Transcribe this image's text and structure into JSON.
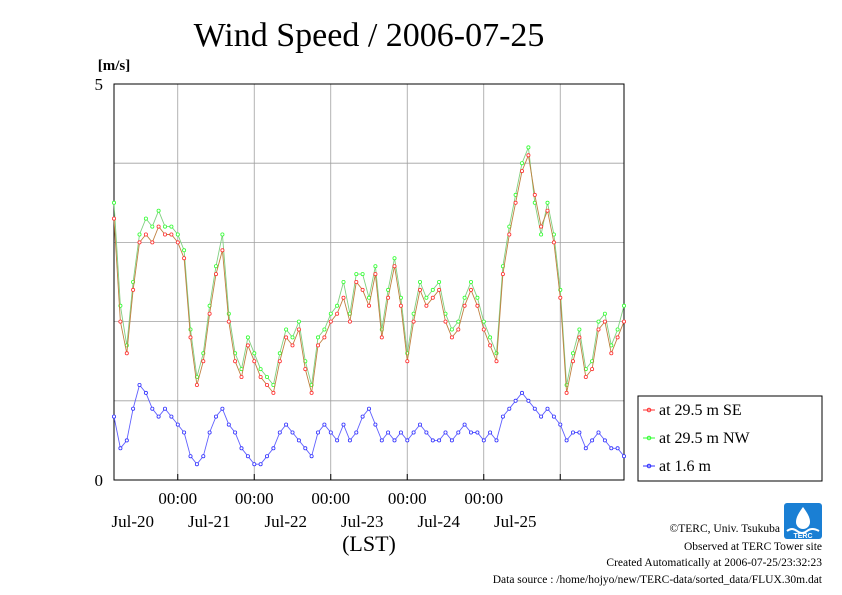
{
  "chart_data": {
    "type": "line",
    "title": "Wind Speed / 2006-07-25",
    "ylabel": "[m/s]",
    "xlabel": "(LST)",
    "ylim": [
      0,
      5
    ],
    "y_tick_labels": [
      "0",
      "5"
    ],
    "x_range_hours_from_jul20_0000": [
      -20,
      140
    ],
    "x_ticks": [
      {
        "time": "00:00",
        "day": "Jul-20",
        "hours": 0
      },
      {
        "time": "00:00",
        "day": "Jul-21",
        "hours": 24
      },
      {
        "time": "00:00",
        "day": "Jul-22",
        "hours": 48
      },
      {
        "time": "00:00",
        "day": "Jul-23",
        "hours": 72
      },
      {
        "time": "00:00",
        "day": "Jul-24",
        "hours": 96
      },
      {
        "time": "",
        "day": "Jul-25",
        "hours": 120
      }
    ],
    "series": [
      {
        "name": "at 29.5 m SE",
        "color": "#ff3030",
        "x": [
          -20,
          -18,
          -16,
          -14,
          -12,
          -10,
          -8,
          -6,
          -4,
          -2,
          0,
          2,
          4,
          6,
          8,
          10,
          12,
          14,
          16,
          18,
          20,
          22,
          24,
          26,
          28,
          30,
          32,
          34,
          36,
          38,
          40,
          42,
          44,
          46,
          48,
          50,
          52,
          54,
          56,
          58,
          60,
          62,
          64,
          66,
          68,
          70,
          72,
          74,
          76,
          78,
          80,
          82,
          84,
          86,
          88,
          90,
          92,
          94,
          96,
          98,
          100,
          102,
          104,
          106,
          108,
          110,
          112,
          114,
          116,
          118,
          120,
          122,
          124,
          126,
          128,
          130,
          132,
          134,
          136,
          138,
          140
        ],
        "values": [
          3.3,
          2.0,
          1.6,
          2.4,
          3.0,
          3.1,
          3.0,
          3.2,
          3.1,
          3.1,
          3.0,
          2.8,
          1.8,
          1.2,
          1.5,
          2.1,
          2.6,
          2.9,
          2.0,
          1.5,
          1.3,
          1.7,
          1.5,
          1.3,
          1.2,
          1.1,
          1.5,
          1.8,
          1.7,
          1.9,
          1.4,
          1.1,
          1.7,
          1.8,
          2.0,
          2.1,
          2.3,
          2.0,
          2.5,
          2.4,
          2.2,
          2.6,
          1.8,
          2.3,
          2.7,
          2.2,
          1.5,
          2.0,
          2.4,
          2.2,
          2.3,
          2.4,
          2.0,
          1.8,
          1.9,
          2.2,
          2.4,
          2.2,
          1.9,
          1.7,
          1.5,
          2.6,
          3.1,
          3.5,
          3.9,
          4.1,
          3.6,
          3.2,
          3.4,
          3.0,
          2.3,
          1.1,
          1.5,
          1.8,
          1.3,
          1.4,
          1.9,
          2.0,
          1.6,
          1.8,
          2.0
        ]
      },
      {
        "name": "at 29.5 m NW",
        "color": "#30ff30",
        "x": [
          -20,
          -18,
          -16,
          -14,
          -12,
          -10,
          -8,
          -6,
          -4,
          -2,
          0,
          2,
          4,
          6,
          8,
          10,
          12,
          14,
          16,
          18,
          20,
          22,
          24,
          26,
          28,
          30,
          32,
          34,
          36,
          38,
          40,
          42,
          44,
          46,
          48,
          50,
          52,
          54,
          56,
          58,
          60,
          62,
          64,
          66,
          68,
          70,
          72,
          74,
          76,
          78,
          80,
          82,
          84,
          86,
          88,
          90,
          92,
          94,
          96,
          98,
          100,
          102,
          104,
          106,
          108,
          110,
          112,
          114,
          116,
          118,
          120,
          122,
          124,
          126,
          128,
          130,
          132,
          134,
          136,
          138,
          140
        ],
        "values": [
          3.5,
          2.2,
          1.7,
          2.5,
          3.1,
          3.3,
          3.2,
          3.4,
          3.2,
          3.2,
          3.1,
          2.9,
          1.9,
          1.3,
          1.6,
          2.2,
          2.7,
          3.1,
          2.1,
          1.6,
          1.4,
          1.8,
          1.6,
          1.4,
          1.3,
          1.2,
          1.6,
          1.9,
          1.8,
          2.0,
          1.5,
          1.2,
          1.8,
          1.9,
          2.1,
          2.2,
          2.5,
          2.1,
          2.6,
          2.6,
          2.3,
          2.7,
          1.9,
          2.4,
          2.8,
          2.3,
          1.6,
          2.1,
          2.5,
          2.3,
          2.4,
          2.5,
          2.1,
          1.9,
          2.0,
          2.3,
          2.5,
          2.3,
          2.0,
          1.8,
          1.6,
          2.7,
          3.2,
          3.6,
          4.0,
          4.2,
          3.5,
          3.1,
          3.5,
          3.1,
          2.4,
          1.2,
          1.6,
          1.9,
          1.4,
          1.5,
          2.0,
          2.1,
          1.7,
          1.9,
          2.2
        ]
      },
      {
        "name": "at 1.6 m",
        "color": "#3030ff",
        "x": [
          -20,
          -18,
          -16,
          -14,
          -12,
          -10,
          -8,
          -6,
          -4,
          -2,
          0,
          2,
          4,
          6,
          8,
          10,
          12,
          14,
          16,
          18,
          20,
          22,
          24,
          26,
          28,
          30,
          32,
          34,
          36,
          38,
          40,
          42,
          44,
          46,
          48,
          50,
          52,
          54,
          56,
          58,
          60,
          62,
          64,
          66,
          68,
          70,
          72,
          74,
          76,
          78,
          80,
          82,
          84,
          86,
          88,
          90,
          92,
          94,
          96,
          98,
          100,
          102,
          104,
          106,
          108,
          110,
          112,
          114,
          116,
          118,
          120,
          122,
          124,
          126,
          128,
          130,
          132,
          134,
          136,
          138,
          140
        ],
        "values": [
          0.8,
          0.4,
          0.5,
          0.9,
          1.2,
          1.1,
          0.9,
          0.8,
          0.9,
          0.8,
          0.7,
          0.6,
          0.3,
          0.2,
          0.3,
          0.6,
          0.8,
          0.9,
          0.7,
          0.6,
          0.4,
          0.3,
          0.2,
          0.2,
          0.3,
          0.4,
          0.6,
          0.7,
          0.6,
          0.5,
          0.4,
          0.3,
          0.6,
          0.7,
          0.6,
          0.5,
          0.7,
          0.5,
          0.6,
          0.8,
          0.9,
          0.7,
          0.5,
          0.6,
          0.5,
          0.6,
          0.5,
          0.6,
          0.7,
          0.6,
          0.5,
          0.5,
          0.6,
          0.5,
          0.6,
          0.7,
          0.6,
          0.6,
          0.5,
          0.6,
          0.5,
          0.8,
          0.9,
          1.0,
          1.1,
          1.0,
          0.9,
          0.8,
          0.9,
          0.8,
          0.7,
          0.5,
          0.6,
          0.6,
          0.4,
          0.5,
          0.6,
          0.5,
          0.4,
          0.4,
          0.3
        ]
      }
    ],
    "grid": true,
    "legend_position": "right"
  },
  "credits": {
    "org": "©TERC, Univ. Tsukuba",
    "site": "Observed at TERC Tower site",
    "created": "Created Automatically at 2006-07-25/23:32:23",
    "source": "Data source : /home/hojyo/new/TERC-data/sorted_data/FLUX.30m.dat"
  },
  "logo": {
    "text": "TERC",
    "color": "#1a7fd4"
  }
}
